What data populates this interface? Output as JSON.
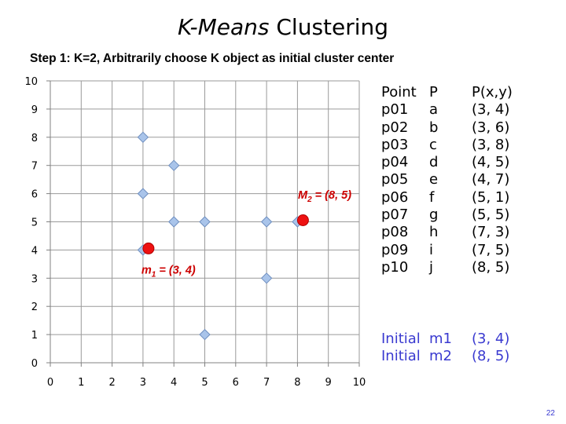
{
  "slide": {
    "title_italic": "K-Means",
    "title_rest": " Clustering",
    "subtitle": "Step 1: K=2, Arbitrarily choose K object as initial cluster center",
    "page_number": "22"
  },
  "table": {
    "headers": [
      "Point",
      "P",
      "P(x,y)"
    ],
    "rows": [
      {
        "point": "p01",
        "label": "a",
        "coord": "(3, 4)"
      },
      {
        "point": "p02",
        "label": "b",
        "coord": "(3, 6)"
      },
      {
        "point": "p03",
        "label": "c",
        "coord": "(3, 8)"
      },
      {
        "point": "p04",
        "label": "d",
        "coord": "(4, 5)"
      },
      {
        "point": "p05",
        "label": "e",
        "coord": "(4, 7)"
      },
      {
        "point": "p06",
        "label": "f",
        "coord": "(5, 1)"
      },
      {
        "point": "p07",
        "label": "g",
        "coord": "(5, 5)"
      },
      {
        "point": "p08",
        "label": "h",
        "coord": "(7, 3)"
      },
      {
        "point": "p09",
        "label": "i",
        "coord": "(7, 5)"
      },
      {
        "point": "p10",
        "label": "j",
        "coord": "(8, 5)"
      }
    ],
    "initial": [
      {
        "label": "Initial",
        "name": "m1",
        "coord": "(3, 4)"
      },
      {
        "label": "Initial",
        "name": "m2",
        "coord": "(8, 5)"
      }
    ]
  },
  "chart_data": {
    "type": "scatter",
    "title": "",
    "xlabel": "",
    "ylabel": "",
    "xlim": [
      0,
      10
    ],
    "ylim": [
      0,
      10
    ],
    "x_ticks": [
      "0",
      "1",
      "2",
      "3",
      "4",
      "5",
      "6",
      "7",
      "8",
      "9",
      "10"
    ],
    "y_ticks": [
      "0",
      "1",
      "2",
      "3",
      "4",
      "5",
      "6",
      "7",
      "8",
      "9",
      "10"
    ],
    "grid": true,
    "series": [
      {
        "marker": "diamond",
        "color": "#a9c4ea",
        "points": [
          [
            3,
            4
          ],
          [
            3,
            6
          ],
          [
            3,
            8
          ],
          [
            4,
            5
          ],
          [
            4,
            7
          ],
          [
            5,
            1
          ],
          [
            5,
            5
          ],
          [
            7,
            3
          ],
          [
            7,
            5
          ],
          [
            8,
            5
          ]
        ]
      },
      {
        "marker": "circle",
        "color": "#ee1111",
        "points": [
          [
            3,
            4
          ],
          [
            8,
            5
          ]
        ]
      }
    ],
    "annotations": [
      {
        "main": "m",
        "sub": "1",
        "rest": " = (3, 4)",
        "x": 3,
        "y": 4
      },
      {
        "main": "M",
        "sub": "2",
        "rest": " = (8, 5)",
        "x": 8,
        "y": 5
      }
    ]
  }
}
